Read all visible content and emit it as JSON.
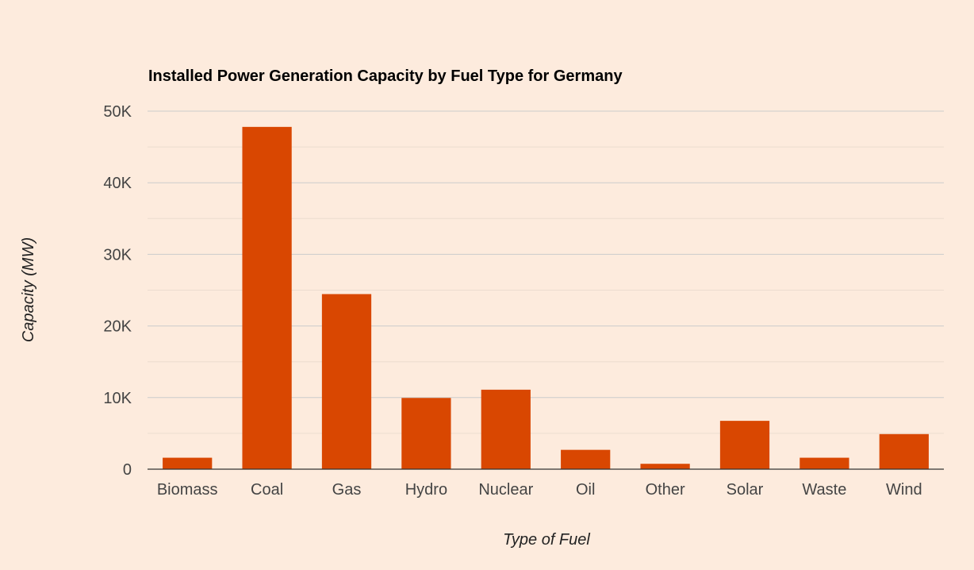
{
  "chart_data": {
    "type": "bar",
    "title": "Installed Power Generation Capacity by Fuel Type for Germany",
    "xlabel": "Type of Fuel",
    "ylabel": "Capacity (MW)",
    "categories": [
      "Biomass",
      "Coal",
      "Gas",
      "Hydro",
      "Nuclear",
      "Oil",
      "Other",
      "Solar",
      "Waste",
      "Wind"
    ],
    "values": [
      1600,
      47800,
      24450,
      9950,
      11100,
      2700,
      750,
      6750,
      1600,
      4900
    ],
    "ylim": [
      0,
      50000
    ],
    "yticks": [
      0,
      10000,
      20000,
      30000,
      40000,
      50000
    ],
    "ytick_labels": [
      "0",
      "10K",
      "20K",
      "30K",
      "40K",
      "50K"
    ],
    "grid": true,
    "legend": "none",
    "colors": {
      "bar": "#d94701",
      "background": "#fdebdd",
      "major_grid": "#cccccc",
      "minor_grid": "#ecdccf",
      "baseline": "#333333"
    }
  }
}
